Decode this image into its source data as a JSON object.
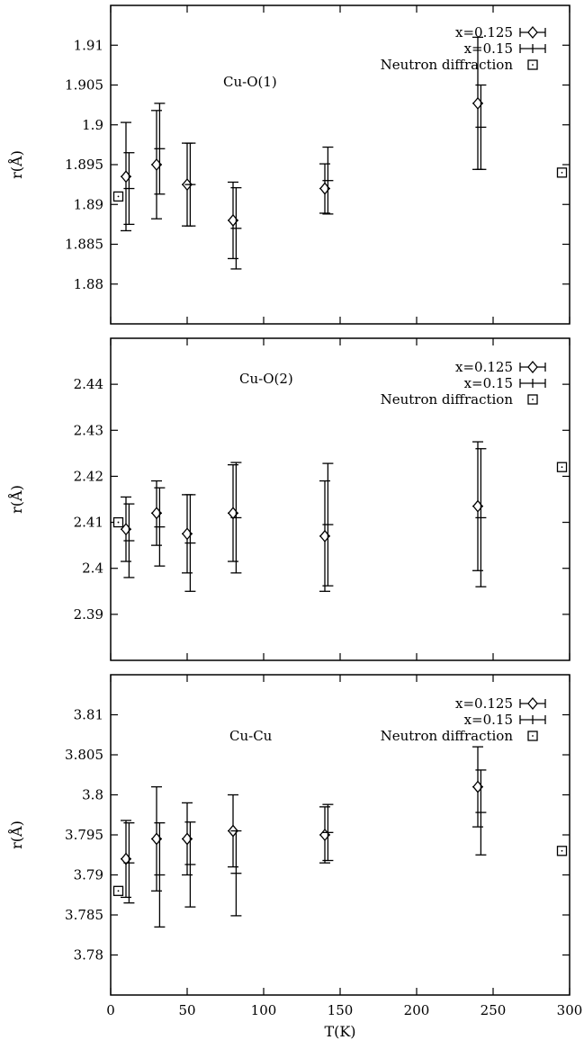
{
  "chart_data": [
    {
      "type": "scatter",
      "annotation": "Cu-O(1)",
      "ylabel": "r(Å)",
      "xlabel": "",
      "xlim": [
        0,
        300
      ],
      "ylim": [
        1.875,
        1.915
      ],
      "yticks": [
        "1.88",
        "1.885",
        "1.89",
        "1.895",
        "1.9",
        "1.905",
        "1.91"
      ],
      "xticks": [],
      "legend_position": "top-right",
      "series": [
        {
          "name": "x=0.125",
          "marker": "diamond",
          "x": [
            10,
            30,
            50,
            80,
            140,
            240
          ],
          "y": [
            1.8935,
            1.895,
            1.8925,
            1.888,
            1.892,
            1.9027
          ],
          "err": [
            0.0068,
            0.0068,
            0.0052,
            0.0048,
            0.0031,
            0.0083
          ]
        },
        {
          "name": "x=0.15",
          "marker": "none",
          "x": [
            12,
            32,
            52,
            82,
            142,
            242
          ],
          "y": [
            1.892,
            1.897,
            1.8925,
            1.887,
            1.893,
            1.8997
          ],
          "err": [
            0.0045,
            0.0057,
            0.0052,
            0.0051,
            0.0042,
            0.0053
          ]
        },
        {
          "name": "Neutron diffraction",
          "marker": "square",
          "x": [
            5,
            295
          ],
          "y": [
            1.891,
            1.894
          ],
          "err": []
        }
      ]
    },
    {
      "type": "scatter",
      "annotation": "Cu-O(2)",
      "ylabel": "r(Å)",
      "xlabel": "",
      "xlim": [
        0,
        300
      ],
      "ylim": [
        2.38,
        2.45
      ],
      "yticks": [
        "2.39",
        "2.4",
        "2.41",
        "2.42",
        "2.43",
        "2.44"
      ],
      "xticks": [],
      "legend_position": "top-right",
      "series": [
        {
          "name": "x=0.125",
          "marker": "diamond",
          "x": [
            10,
            30,
            50,
            80,
            140,
            240
          ],
          "y": [
            2.4085,
            2.412,
            2.4075,
            2.412,
            2.407,
            2.4135
          ],
          "err": [
            0.007,
            0.007,
            0.0085,
            0.0105,
            0.012,
            0.014
          ]
        },
        {
          "name": "x=0.15",
          "marker": "none",
          "x": [
            12,
            32,
            52,
            82,
            142,
            242
          ],
          "y": [
            2.406,
            2.409,
            2.4055,
            2.411,
            2.4095,
            2.411
          ],
          "err": [
            0.008,
            0.0085,
            0.0105,
            0.012,
            0.0133,
            0.015
          ]
        },
        {
          "name": "Neutron diffraction",
          "marker": "square",
          "x": [
            5,
            295
          ],
          "y": [
            2.41,
            2.422
          ],
          "err": []
        }
      ]
    },
    {
      "type": "scatter",
      "annotation": "Cu-Cu",
      "ylabel": "r(Å)",
      "xlabel": "T(K)",
      "xlim": [
        0,
        300
      ],
      "ylim": [
        3.775,
        3.815
      ],
      "yticks": [
        "3.78",
        "3.785",
        "3.79",
        "3.795",
        "3.8",
        "3.805",
        "3.81"
      ],
      "xticks": [
        "0",
        "50",
        "100",
        "150",
        "200",
        "250",
        "300"
      ],
      "legend_position": "top-right",
      "series": [
        {
          "name": "x=0.125",
          "marker": "diamond",
          "x": [
            10,
            30,
            50,
            80,
            140,
            240
          ],
          "y": [
            3.792,
            3.7945,
            3.7945,
            3.7955,
            3.795,
            3.801
          ],
          "err": [
            0.0048,
            0.0065,
            0.0045,
            0.0045,
            0.0035,
            0.005
          ]
        },
        {
          "name": "x=0.15",
          "marker": "none",
          "x": [
            12,
            32,
            52,
            82,
            142,
            242
          ],
          "y": [
            3.7915,
            3.79,
            3.7913,
            3.7902,
            3.7953,
            3.7978
          ],
          "err": [
            0.005,
            0.0065,
            0.0053,
            0.0053,
            0.0035,
            0.0053
          ]
        },
        {
          "name": "Neutron diffraction",
          "marker": "square",
          "x": [
            5,
            295
          ],
          "y": [
            3.788,
            3.793
          ],
          "err": []
        }
      ]
    }
  ]
}
